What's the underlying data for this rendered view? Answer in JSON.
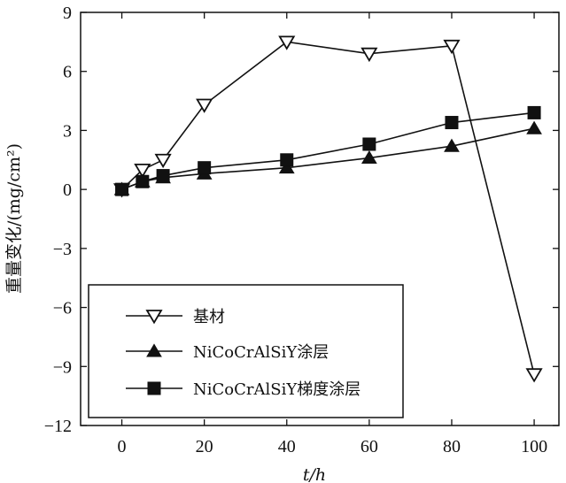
{
  "chart_data": {
    "type": "line",
    "xlabel": "t/h",
    "ylabel": "重量变化/(mg/cm²)",
    "xlim": [
      -10,
      106
    ],
    "ylim": [
      -12,
      9
    ],
    "xticks": [
      0,
      20,
      40,
      60,
      80,
      100
    ],
    "yticks": [
      9,
      6,
      3,
      0,
      -3,
      -6,
      -9,
      -12
    ],
    "grid": false,
    "legend_position": "bottom-left",
    "series": [
      {
        "name": "基材",
        "marker": "triangle-down-open",
        "x": [
          0,
          5,
          10,
          20,
          40,
          60,
          80,
          100
        ],
        "y": [
          0,
          1.0,
          1.5,
          4.3,
          7.5,
          6.9,
          7.3,
          -9.4
        ]
      },
      {
        "name": "NiCoCrAlSiY涂层",
        "marker": "triangle-up-filled",
        "x": [
          0,
          5,
          10,
          20,
          40,
          60,
          80,
          100
        ],
        "y": [
          0,
          0.4,
          0.6,
          0.8,
          1.1,
          1.6,
          2.2,
          3.1
        ]
      },
      {
        "name": "NiCoCrAlSiY梯度涂层",
        "marker": "square-filled",
        "x": [
          0,
          5,
          10,
          20,
          40,
          60,
          80,
          100
        ],
        "y": [
          0,
          0.4,
          0.7,
          1.1,
          1.5,
          2.3,
          3.4,
          3.9
        ]
      }
    ]
  }
}
